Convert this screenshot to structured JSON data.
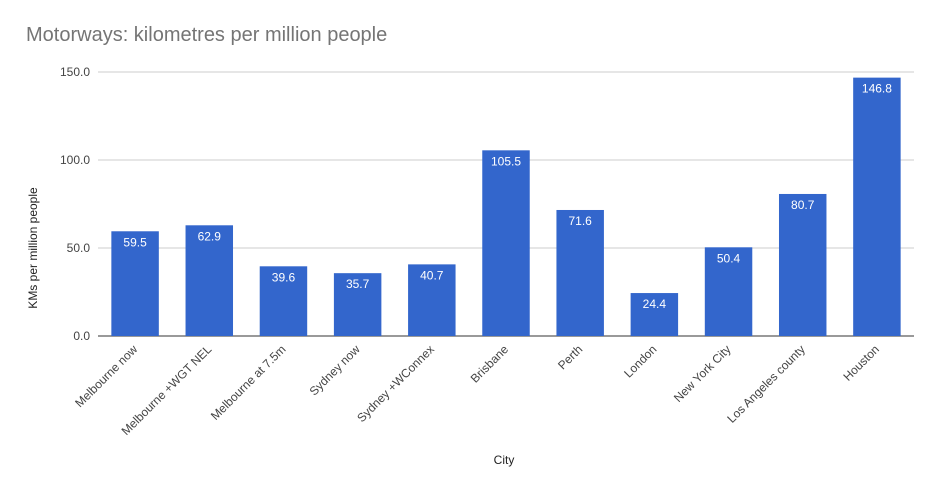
{
  "chart_data": {
    "type": "bar",
    "title": "Motorways: kilometres per million people",
    "xlabel": "City",
    "ylabel": "KMs per million people",
    "categories": [
      "Melbourne now",
      "Melbourne +WGT NEL",
      "Melbourne at 7.5m",
      "Sydney now",
      "Sydney +WConnex",
      "Brisbane",
      "Perth",
      "London",
      "New York City",
      "Los Angeles county",
      "Houston"
    ],
    "values": [
      59.5,
      62.9,
      39.6,
      35.7,
      40.7,
      105.5,
      71.6,
      24.4,
      50.4,
      80.7,
      146.8
    ],
    "yticks": [
      "0.0",
      "50.0",
      "100.0",
      "150.0"
    ],
    "ylim": [
      0,
      150
    ],
    "grid": true,
    "legend": "none",
    "bar_color": "#3366cc"
  }
}
